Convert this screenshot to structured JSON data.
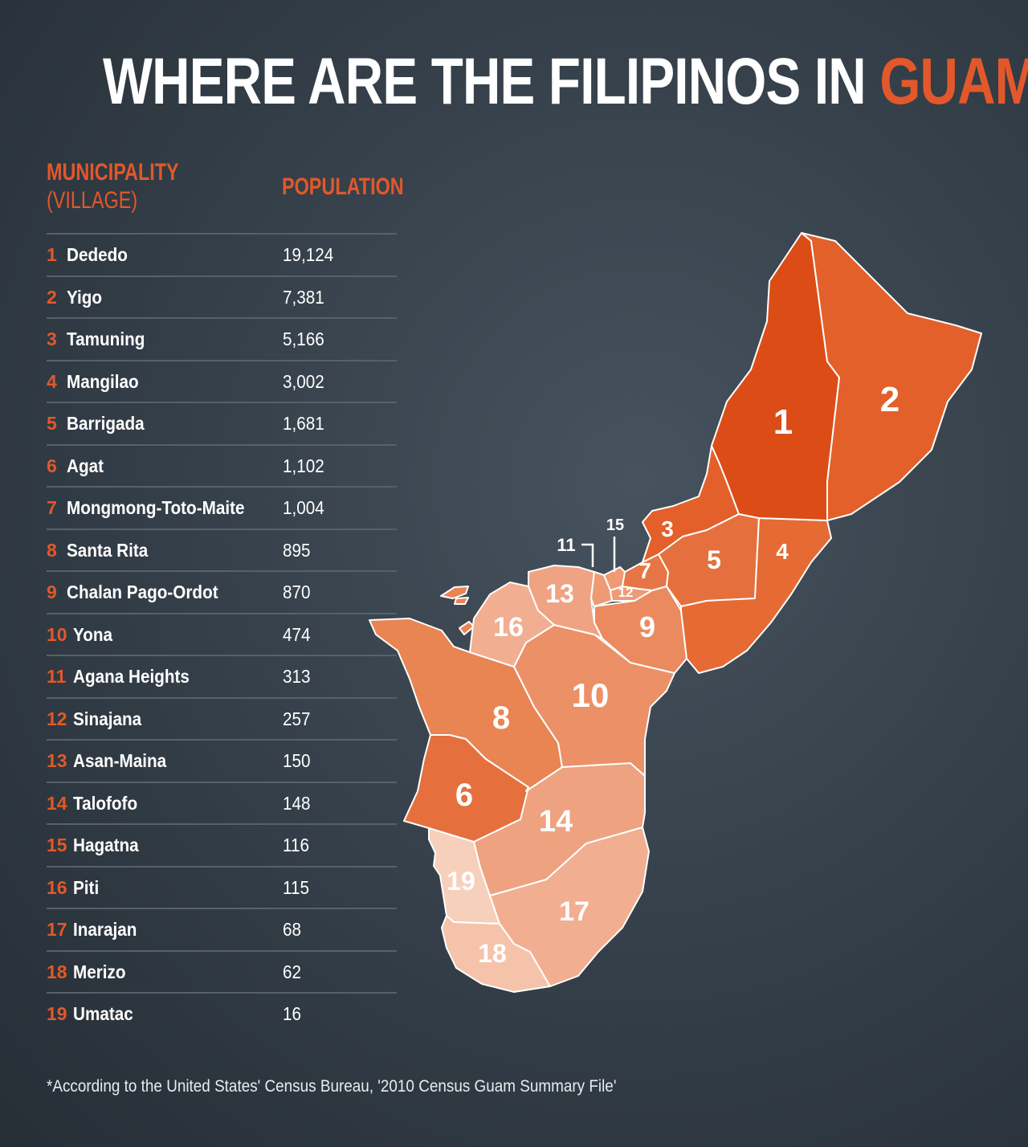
{
  "title": {
    "main": "WHERE ARE THE FILIPINOS IN ",
    "accent": "GUAM?"
  },
  "table": {
    "header_municipality": "MUNICIPALITY",
    "header_village": "(VILLAGE)",
    "header_population": "POPULATION",
    "rows": [
      {
        "rank": "1",
        "name": "Dededo",
        "population": "19,124"
      },
      {
        "rank": "2",
        "name": "Yigo",
        "population": "7,381"
      },
      {
        "rank": "3",
        "name": "Tamuning",
        "population": "5,166"
      },
      {
        "rank": "4",
        "name": "Mangilao",
        "population": "3,002"
      },
      {
        "rank": "5",
        "name": "Barrigada",
        "population": "1,681"
      },
      {
        "rank": "6",
        "name": "Agat",
        "population": "1,102"
      },
      {
        "rank": "7",
        "name": "Mongmong-Toto-Maite",
        "population": "1,004"
      },
      {
        "rank": "8",
        "name": "Santa Rita",
        "population": "895"
      },
      {
        "rank": "9",
        "name": "Chalan Pago-Ordot",
        "population": "870"
      },
      {
        "rank": "10",
        "name": "Yona",
        "population": "474"
      },
      {
        "rank": "11",
        "name": "Agana Heights",
        "population": "313"
      },
      {
        "rank": "12",
        "name": "Sinajana",
        "population": "257"
      },
      {
        "rank": "13",
        "name": "Asan-Maina",
        "population": "150"
      },
      {
        "rank": "14",
        "name": "Talofofo",
        "population": "148"
      },
      {
        "rank": "15",
        "name": "Hagatna",
        "population": "116"
      },
      {
        "rank": "16",
        "name": "Piti",
        "population": "115"
      },
      {
        "rank": "17",
        "name": "Inarajan",
        "population": "68"
      },
      {
        "rank": "18",
        "name": "Merizo",
        "population": "62"
      },
      {
        "rank": "19",
        "name": "Umatac",
        "population": "16"
      }
    ]
  },
  "map_labels": [
    "1",
    "2",
    "3",
    "4",
    "5",
    "6",
    "7",
    "8",
    "9",
    "10",
    "11",
    "12",
    "13",
    "14",
    "15",
    "16",
    "17",
    "18",
    "19"
  ],
  "colors": {
    "accent": "#e2582a",
    "shade_1": "#dc4c17",
    "shade_2": "#e3602a",
    "shade_3": "#e56a34",
    "shade_4": "#e5703d",
    "shade_5": "#e67646",
    "shade_6": "#e87a4c",
    "shade_7": "#e98453",
    "shade_8": "#ea8a5e",
    "shade_9": "#ec9068",
    "shade_10": "#ee9a74",
    "shade_light": "#f2ae90",
    "shade_lighter": "#f5c3aa",
    "shade_lightest": "#f7d0bc"
  },
  "footnote": "*According to the United States' Census Bureau, '2010 Census Guam Summary File'"
}
